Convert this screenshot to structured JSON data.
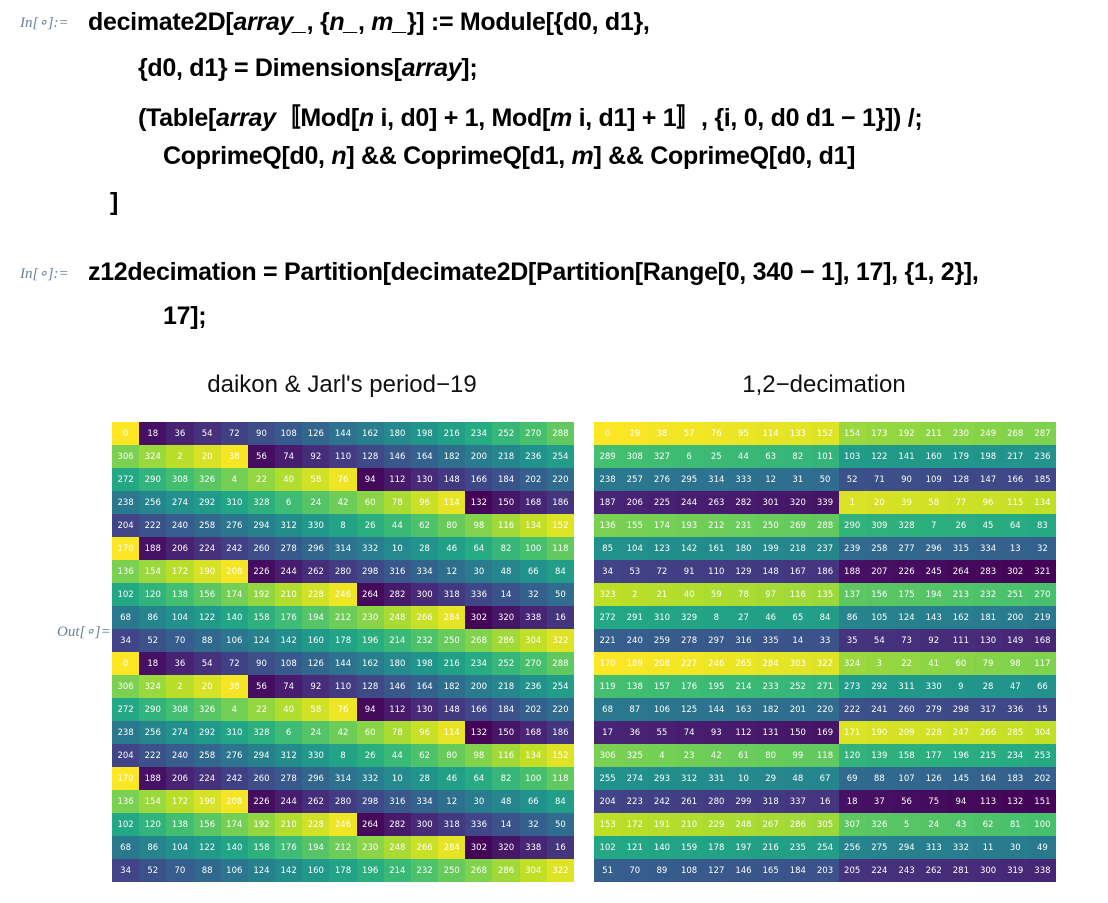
{
  "cells": {
    "in1": {
      "label": "In[∘]:=",
      "lines": [
        [
          {
            "t": "decimate2D["
          },
          {
            "t": "array_",
            "i": true
          },
          {
            "t": ", {"
          },
          {
            "t": "n_",
            "i": true
          },
          {
            "t": ", "
          },
          {
            "t": "m_",
            "i": true
          },
          {
            "t": "}] := Module[{d0, d1},"
          }
        ],
        [
          {
            "t": "{d0, d1} = Dimensions["
          },
          {
            "t": "array",
            "i": true
          },
          {
            "t": "];"
          }
        ],
        [
          {
            "t": "(Table["
          },
          {
            "t": "array",
            "i": true
          },
          {
            "t": "〚Mod["
          },
          {
            "t": "n",
            "i": true
          },
          {
            "t": " i, d0] + 1, Mod["
          },
          {
            "t": "m",
            "i": true
          },
          {
            "t": " i, d1] + 1〛, {i, 0, d0 d1 − 1}]) /;"
          }
        ],
        [
          {
            "t": "CoprimeQ[d0, "
          },
          {
            "t": "n",
            "i": true
          },
          {
            "t": "] && CoprimeQ[d1, "
          },
          {
            "t": "m",
            "i": true
          },
          {
            "t": "] && CoprimeQ[d0, d1]"
          }
        ],
        [
          {
            "t": "]"
          }
        ]
      ]
    },
    "in2": {
      "label": "In[∘]:=",
      "lines": [
        [
          {
            "t": "z12decimation = Partition[decimate2D[Partition[Range[0, 340 − 1], 17], {1, 2}],"
          }
        ],
        [
          {
            "t": "17];"
          }
        ]
      ]
    },
    "out": {
      "label": "Out[∘]="
    }
  },
  "plots": {
    "left": {
      "title": "daikon & Jarl's period−19",
      "rule": "left"
    },
    "right": {
      "title": "1,2−decimation",
      "rule": "right"
    }
  },
  "colormap": "viridis",
  "value_range": [
    0,
    339
  ]
}
